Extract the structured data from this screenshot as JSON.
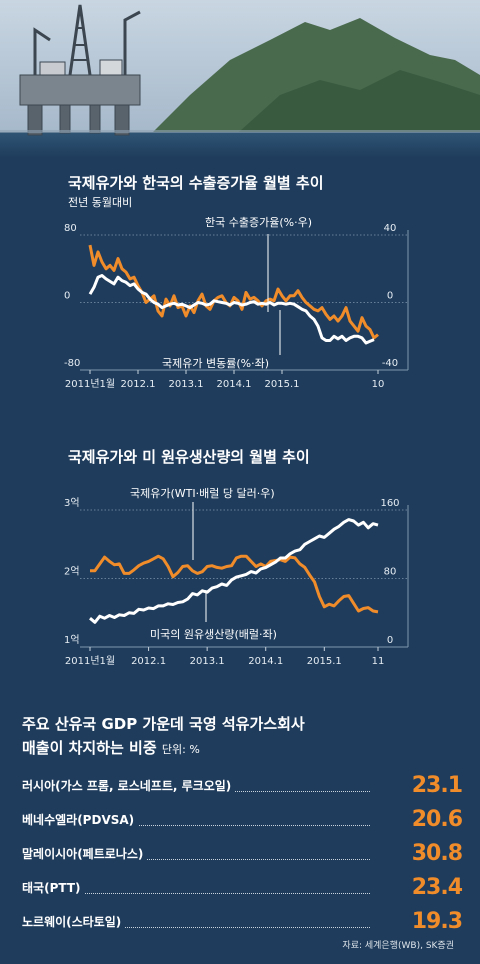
{
  "charts": [
    {
      "type": "line",
      "title": "국제유가와 한국의 수출증가율 월별 추이",
      "subtitle": "전년 동월대비",
      "left_axis_ticks": [
        "80",
        "0",
        "-80"
      ],
      "right_axis_ticks": [
        "40",
        "0",
        "-40"
      ],
      "x_tick_labels": [
        "2011년1월",
        "2012.1",
        "2013.1",
        "2014.1",
        "2015.1",
        "10"
      ],
      "y_left_lim": [
        -80,
        80
      ],
      "y_right_lim": [
        -40,
        40
      ],
      "series": [
        {
          "name": "한국 수출증가율(%·우)",
          "axis": "right",
          "color": "#f08c2a",
          "values": [
            34,
            22,
            30,
            24,
            20,
            22,
            19,
            26,
            20,
            18,
            14,
            15,
            10,
            6,
            0,
            2,
            4,
            -5,
            -8,
            2,
            -2,
            4,
            -3,
            -2,
            -8,
            -2,
            -6,
            1,
            5,
            -2,
            -4,
            1,
            3,
            4,
            0,
            -2,
            3,
            1,
            -4,
            6,
            2,
            3,
            1,
            -2,
            1,
            2,
            1,
            8,
            4,
            1,
            4,
            4,
            7,
            3,
            0,
            -2,
            -4,
            -5,
            -3,
            -7,
            -10,
            -8,
            -11,
            -8,
            -3,
            -11,
            -14,
            -17,
            -9,
            -14,
            -16,
            -21,
            -19
          ]
        },
        {
          "name": "국제유가 변동률(%·좌)",
          "axis": "left",
          "color": "#ffffff",
          "values": [
            10,
            18,
            30,
            32,
            28,
            25,
            22,
            30,
            26,
            24,
            20,
            22,
            16,
            12,
            10,
            4,
            0,
            -2,
            -6,
            -4,
            -2,
            -1,
            -3,
            -2,
            -4,
            -6,
            -3,
            0,
            -1,
            -3,
            -2,
            2,
            1,
            0,
            -1,
            -3,
            0,
            -1,
            -3,
            -2,
            0,
            1,
            -2,
            -1,
            -2,
            0,
            -3,
            -1,
            -1,
            -2,
            -1,
            -2,
            -5,
            -8,
            -10,
            -16,
            -20,
            -28,
            -42,
            -45,
            -45,
            -40,
            -43,
            -40,
            -45,
            -42,
            -40,
            -40,
            -42,
            -48,
            -46,
            -44
          ]
        }
      ]
    },
    {
      "type": "line",
      "title": "국제유가와 미 원유생산량의 월별 추이",
      "left_axis_ticks": [
        "3억",
        "2억",
        "1억"
      ],
      "right_axis_ticks": [
        "160",
        "80",
        "0"
      ],
      "x_tick_labels": [
        "2011년1월",
        "2012.1",
        "2013.1",
        "2014.1",
        "2015.1",
        "11"
      ],
      "y_left_lim": [
        1,
        3
      ],
      "y_right_lim": [
        0,
        160
      ],
      "series": [
        {
          "name": "국제유가(WTI·배럴 당 달러·우)",
          "axis": "right",
          "color": "#f08c2a",
          "values": [
            89,
            89,
            97,
            105,
            100,
            96,
            97,
            86,
            86,
            90,
            95,
            98,
            100,
            103,
            106,
            103,
            94,
            82,
            87,
            94,
            95,
            89,
            86,
            88,
            94,
            95,
            93,
            92,
            94,
            95,
            104,
            106,
            106,
            100,
            94,
            97,
            94,
            100,
            101,
            102,
            100,
            105,
            104,
            97,
            93,
            84,
            76,
            59,
            47,
            50,
            48,
            54,
            59,
            60,
            51,
            42,
            45,
            46,
            42,
            41
          ]
        },
        {
          "name": "미국의 원유생산량(배럴·좌)",
          "axis": "left",
          "color": "#ffffff",
          "values": [
            1.42,
            1.36,
            1.45,
            1.42,
            1.46,
            1.43,
            1.47,
            1.46,
            1.5,
            1.49,
            1.55,
            1.54,
            1.57,
            1.56,
            1.6,
            1.6,
            1.63,
            1.62,
            1.65,
            1.66,
            1.7,
            1.78,
            1.76,
            1.82,
            1.8,
            1.86,
            1.88,
            1.92,
            1.9,
            1.98,
            2.02,
            2.04,
            2.06,
            2.1,
            2.08,
            2.14,
            2.16,
            2.2,
            2.24,
            2.3,
            2.3,
            2.36,
            2.4,
            2.42,
            2.5,
            2.54,
            2.58,
            2.62,
            2.6,
            2.66,
            2.72,
            2.76,
            2.82,
            2.86,
            2.84,
            2.78,
            2.82,
            2.74,
            2.8,
            2.78
          ]
        }
      ]
    }
  ],
  "section3": {
    "title_line1": "주요 산유국 GDP 가운데 국영 석유가스회사",
    "title_line2": "매출이 차지하는 비중",
    "unit": "단위: %"
  },
  "chart_data": {
    "type": "table",
    "title": "주요 산유국 GDP 가운데 국영 석유가스회사 매출이 차지하는 비중",
    "unit": "%",
    "categories": [
      "러시아(가스 프롬, 로스네프트, 루크오일)",
      "베네수엘라(PDVSA)",
      "말레이시아(페트로나스)",
      "태국(PTT)",
      "노르웨이(스타토일)"
    ],
    "values": [
      23.1,
      20.6,
      30.8,
      23.4,
      19.3
    ]
  },
  "source": "자료: 세계은행(WB), SK증권",
  "colors": {
    "background": "#1f3c5c",
    "accent": "#f08c2a",
    "line_white": "#ffffff"
  }
}
